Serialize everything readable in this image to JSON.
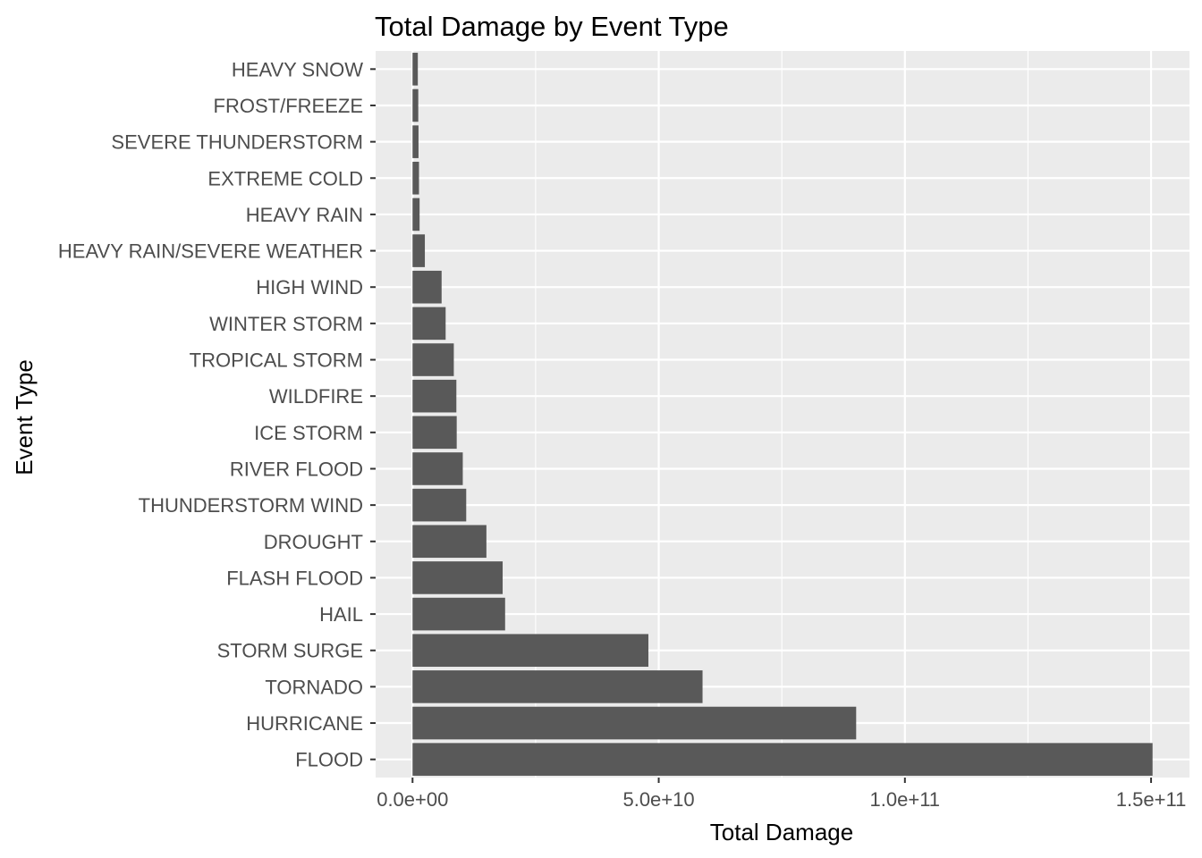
{
  "chart_data": {
    "type": "bar",
    "orientation": "horizontal",
    "title": "Total Damage by Event Type",
    "xlabel": "Total Damage",
    "ylabel": "Event Type",
    "categories": [
      "FLOOD",
      "HURRICANE",
      "TORNADO",
      "STORM SURGE",
      "HAIL",
      "FLASH FLOOD",
      "DROUGHT",
      "THUNDERSTORM WIND",
      "RIVER FLOOD",
      "ICE STORM",
      "WILDFIRE",
      "TROPICAL STORM",
      "WINTER STORM",
      "HIGH WIND",
      "HEAVY RAIN/SEVERE WEATHER",
      "HEAVY RAIN",
      "EXTREME COLD",
      "SEVERE THUNDERSTORM",
      "FROST/FREEZE",
      "HEAVY SNOW"
    ],
    "values": [
      150300000000,
      90100000000,
      58900000000,
      47900000000,
      18800000000,
      18300000000,
      15000000000,
      10900000000,
      10200000000,
      8970000000,
      8900000000,
      8380000000,
      6720000000,
      5900000000,
      2500000000,
      1430000000,
      1310000000,
      1210000000,
      1160000000,
      1070000000
    ],
    "xlim": [
      -7500000000,
      157800000000
    ],
    "x_ticks": [
      0,
      50000000000,
      100000000000,
      150000000000
    ],
    "x_tick_labels": [
      "0.0e+00",
      "5.0e+10",
      "1.0e+11",
      "1.5e+11"
    ],
    "grid": true,
    "legend": "none"
  }
}
